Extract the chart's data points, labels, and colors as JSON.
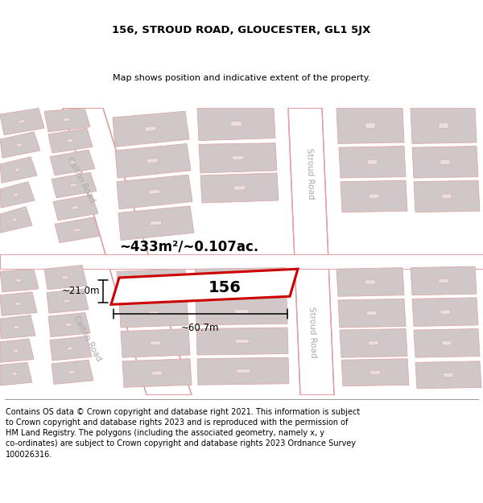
{
  "title": "156, STROUD ROAD, GLOUCESTER, GL1 5JX",
  "subtitle": "Map shows position and indicative extent of the property.",
  "footer": "Contains OS data © Crown copyright and database right 2021. This information is subject\nto Crown copyright and database rights 2023 and is reproduced with the permission of\nHM Land Registry. The polygons (including the associated geometry, namely x, y\nco-ordinates) are subject to Crown copyright and database rights 2023 Ordnance Survey\n100026316.",
  "map_bg": "#f2efef",
  "road_fill": "#ffffff",
  "road_stroke": "#e0a0a0",
  "building_fill": "#d0c8c8",
  "building_stroke": "#e0a8a8",
  "highlight_color": "#cc0000",
  "highlight_fill": "#ffffff",
  "area_text": "~433m²/~0.107ac.",
  "width_text": "~60.7m",
  "height_text": "~21.0m",
  "label_156": "156",
  "road_label_stroud": "Stroud Road",
  "road_label_calton": "Calton Road",
  "footer_fontsize": 7.0,
  "title_fontsize": 9.5,
  "subtitle_fontsize": 8.0
}
